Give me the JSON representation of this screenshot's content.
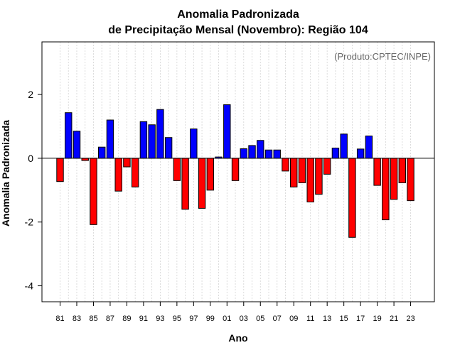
{
  "chart_data": {
    "type": "bar",
    "title": "Anomalia Padronizada",
    "subtitle": "de Precipitação Mensal (Novembro): Região 104",
    "xlabel": "Ano",
    "ylabel": "Anomalia Padronizada",
    "credit": "(Produto:CPTEC/INPE)",
    "ylim": [
      -4.5,
      3.65
    ],
    "yticks": [
      -4,
      -2,
      0,
      2
    ],
    "grid": true,
    "positive_color": "#0000ff",
    "negative_color": "#ff0000",
    "categories": [
      "81",
      "82",
      "83",
      "84",
      "85",
      "86",
      "87",
      "88",
      "89",
      "90",
      "91",
      "92",
      "93",
      "94",
      "95",
      "96",
      "97",
      "98",
      "99",
      "00",
      "01",
      "02",
      "03",
      "04",
      "05",
      "06",
      "07",
      "08",
      "09",
      "10",
      "11",
      "12",
      "13",
      "14",
      "15",
      "16",
      "17",
      "18",
      "19",
      "20",
      "21",
      "22",
      "23"
    ],
    "tick_labels": [
      "81",
      "83",
      "85",
      "87",
      "89",
      "91",
      "93",
      "95",
      "97",
      "99",
      "01",
      "03",
      "05",
      "07",
      "09",
      "11",
      "13",
      "15",
      "17",
      "19",
      "21",
      "23"
    ],
    "values": [
      -0.73,
      1.43,
      0.85,
      -0.07,
      -2.08,
      0.35,
      1.2,
      -1.03,
      -0.27,
      -0.9,
      1.15,
      1.05,
      1.53,
      0.65,
      -0.7,
      -1.6,
      0.92,
      -1.57,
      -1.0,
      0.04,
      1.68,
      -0.7,
      0.3,
      0.4,
      0.56,
      0.26,
      0.26,
      -0.4,
      -0.9,
      -0.77,
      -1.37,
      -1.13,
      -0.5,
      0.32,
      0.76,
      -2.48,
      0.29,
      0.7,
      -0.85,
      -1.93,
      -1.29,
      -0.77,
      -1.33
    ]
  }
}
